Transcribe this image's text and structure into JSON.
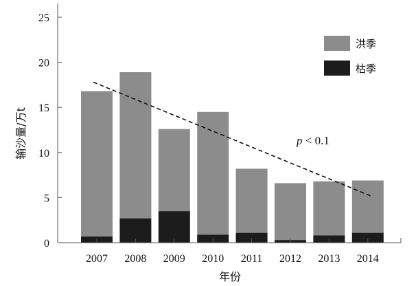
{
  "chart_data": {
    "type": "bar",
    "stacked": true,
    "categories": [
      "2007",
      "2008",
      "2009",
      "2010",
      "2011",
      "2012",
      "2013",
      "2014"
    ],
    "series": [
      {
        "name": "枯季",
        "color": "#1c1c1c",
        "values": [
          0.7,
          2.7,
          3.5,
          0.9,
          1.1,
          0.3,
          0.8,
          1.1
        ]
      },
      {
        "name": "洪季",
        "color": "#8c8c8c",
        "values": [
          16.1,
          16.2,
          9.1,
          13.6,
          7.1,
          6.3,
          6.0,
          5.8
        ]
      }
    ],
    "xlabel": "年份",
    "ylabel": "输沙量/万t",
    "ylim": [
      0,
      25
    ],
    "yticks": [
      0,
      5,
      10,
      15,
      20,
      25
    ],
    "grid": false,
    "legend": {
      "placement": "top-right",
      "order": [
        "洪季",
        "枯季"
      ]
    },
    "trendline": {
      "style": "dashed",
      "from": {
        "x": "2007",
        "y": 17.8
      },
      "to": {
        "x": "2014",
        "y": 5.2
      }
    },
    "annotation": {
      "p_label": "p",
      "rest": " < 0.1"
    }
  }
}
